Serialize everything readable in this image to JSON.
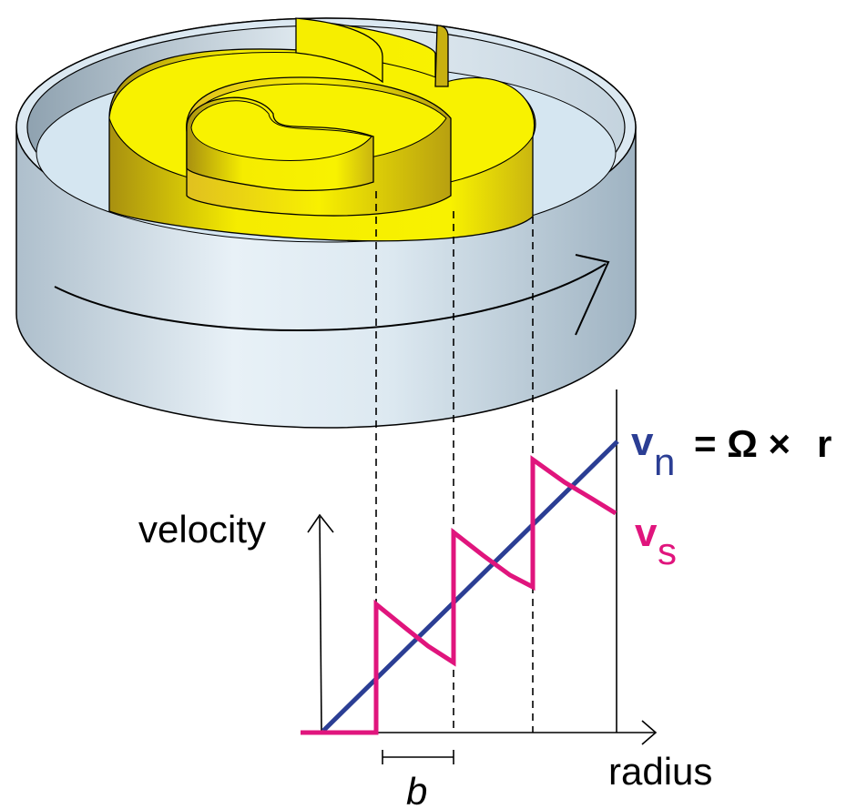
{
  "labels": {
    "velocity": "velocity",
    "radius": "radius",
    "spacing": "b",
    "vn_symbol": "v",
    "vn_subscript": "n",
    "vn_equation": "= Ω ×",
    "vn_r": "r",
    "vs_symbol": "v",
    "vs_subscript": "s"
  },
  "colors": {
    "vessel_fill": "#d6e7f1",
    "vessel_wall_light": "#eaf2f8",
    "vessel_wall_dark": "#a7bac7",
    "vortex_sheet": "#f7f000",
    "vortex_sheet_shadow": "#b09a10",
    "normal_velocity_line": "#2b3e94",
    "superfluid_velocity_line": "#e0157d",
    "outline": "#000000"
  }
}
